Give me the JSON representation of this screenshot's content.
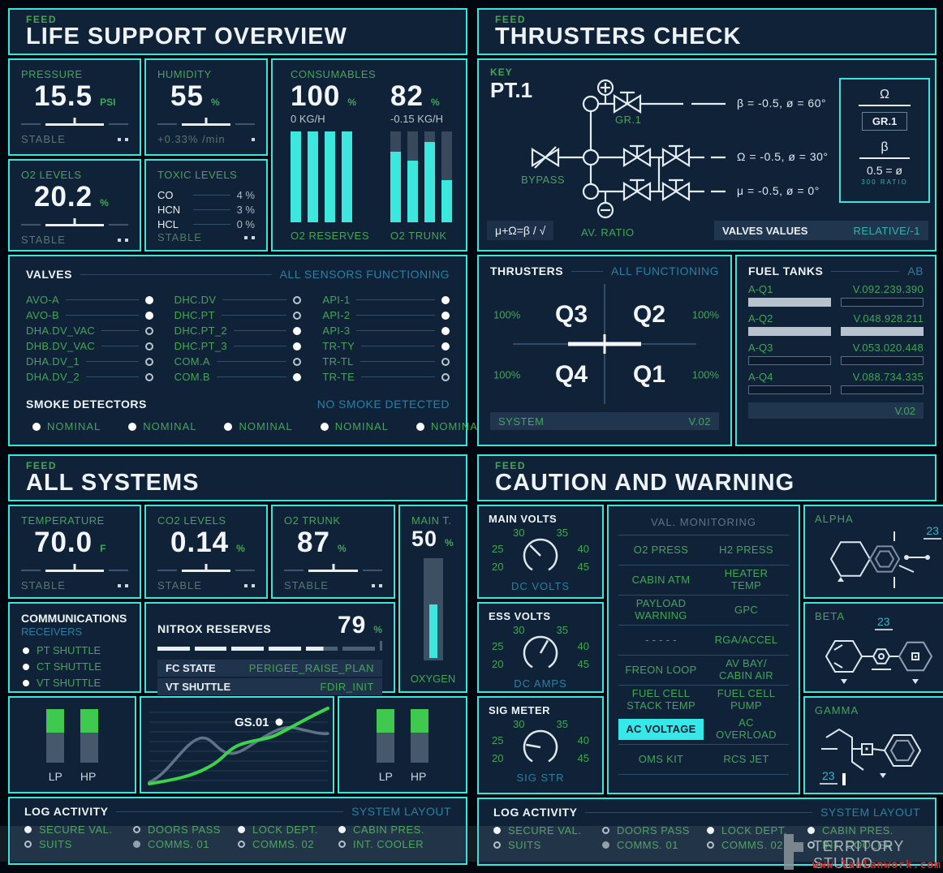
{
  "accent": {
    "cyan": "#38e6dc",
    "green": "#46a557",
    "teal": "#2f7fa0",
    "bar_green": "#3fca4f",
    "highlight": "#35e9e9"
  },
  "life_support": {
    "feed": "FEED",
    "title": "LIFE SUPPORT OVERVIEW",
    "pressure": {
      "label": "PRESSURE",
      "value": "15.5",
      "unit": "PSI",
      "status": "STABLE"
    },
    "humidity": {
      "label": "HUMIDITY",
      "value": "55",
      "unit": "%",
      "status": "+0.33% /min"
    },
    "o2_levels": {
      "label": "O2 LEVELS",
      "value": "20.2",
      "unit": "%",
      "status": "STABLE"
    },
    "toxic": {
      "label": "TOXIC LEVELS",
      "status": "STABLE",
      "rows": [
        {
          "name": "CO",
          "value": "4 %"
        },
        {
          "name": "HCN",
          "value": "3 %"
        },
        {
          "name": "HCL",
          "value": "0 %"
        }
      ]
    },
    "consumables": {
      "label": "CONSUMABLES",
      "reserves": {
        "value": "100",
        "unit": "%",
        "rate": "0 KG/H",
        "caption": "O2 RESERVES",
        "bars": [
          100,
          100,
          100,
          100
        ]
      },
      "trunk": {
        "value": "82",
        "unit": "%",
        "rate": "-0.15 KG/H",
        "caption": "O2 TRUNK",
        "bars": [
          78,
          68,
          88,
          46
        ]
      }
    },
    "valves": {
      "label": "VALVES",
      "status": "ALL SENSORS FUNCTIONING",
      "col1": [
        {
          "name": "AVO-A",
          "state": "on"
        },
        {
          "name": "AVO-B",
          "state": "on"
        },
        {
          "name": "DHA.DV_VAC",
          "state": "off"
        },
        {
          "name": "DHB.DV_VAC",
          "state": "off"
        },
        {
          "name": "DHA.DV_1",
          "state": "off"
        },
        {
          "name": "DHA.DV_2",
          "state": "off"
        }
      ],
      "col2": [
        {
          "name": "DHC.DV",
          "state": "off"
        },
        {
          "name": "DHC.PT",
          "state": "off"
        },
        {
          "name": "DHC.PT_2",
          "state": "on"
        },
        {
          "name": "DHC.PT_3",
          "state": "on"
        },
        {
          "name": "COM.A",
          "state": "off"
        },
        {
          "name": "COM.B",
          "state": "on"
        }
      ],
      "col3": [
        {
          "name": "API-1",
          "state": "on"
        },
        {
          "name": "API-2",
          "state": "on"
        },
        {
          "name": "API-3",
          "state": "on"
        },
        {
          "name": "TR-TY",
          "state": "on"
        },
        {
          "name": "TR-TL",
          "state": "off"
        },
        {
          "name": "TR-TE",
          "state": "off"
        }
      ]
    },
    "smoke": {
      "label": "SMOKE DETECTORS",
      "status": "NO SMOKE DETECTED",
      "items": [
        {
          "name": "NOMINAL"
        },
        {
          "name": "NOMINAL"
        },
        {
          "name": "NOMINAL"
        },
        {
          "name": "NOMINAL"
        },
        {
          "name": "NOMINAL"
        }
      ]
    }
  },
  "all_systems": {
    "feed": "FEED",
    "title": "ALL SYSTEMS",
    "temperature": {
      "label": "TEMPERATURE",
      "value": "70.0",
      "unit": "F",
      "status": "STABLE"
    },
    "co2": {
      "label": "CO2 LEVELS",
      "value": "0.14",
      "unit": "%",
      "status": "STABLE"
    },
    "o2_trunk": {
      "label": "O2 TRUNK",
      "value": "87",
      "unit": "%",
      "status": "STABLE"
    },
    "main_t": {
      "label": "MAIN T.",
      "value": "50",
      "unit": "%",
      "caption": "OXYGEN",
      "level": 52
    },
    "comms": {
      "label": "COMMUNICATIONS",
      "sub": "RECEIVERS",
      "items": [
        {
          "name": "PT SHUTTLE"
        },
        {
          "name": "CT SHUTTLE"
        },
        {
          "name": "VT SHUTTLE"
        }
      ]
    },
    "nitrox": {
      "label": "NITROX RESERVES",
      "value": "79",
      "unit": "%",
      "segments": [
        "full",
        "full",
        "full",
        "full",
        "half",
        "empty"
      ],
      "rows": [
        {
          "name": "FC STATE",
          "value": "PERIGEE_RAISE_PLAN"
        },
        {
          "name": "VT SHUTTLE",
          "value": "FDIR_INIT"
        }
      ]
    },
    "graph": {
      "label": "GS.01"
    },
    "gauge_left": {
      "lp": "LP",
      "hp": "HP"
    },
    "gauge_right": {
      "lp": "LP",
      "hp": "HP"
    }
  },
  "thrusters_check": {
    "feed": "FEED",
    "title": "THRUSTERS CHECK",
    "key": {
      "label": "KEY",
      "name": "PT.1",
      "gr": "GR.1",
      "bypass": "BYPASS",
      "av_ratio": "AV. RATIO",
      "eq1": "β = -0.5, ø = 60°",
      "eq2": "Ω = -0.5, ø = 30°",
      "eq3": "μ = -0.5, ø = 0°",
      "formula": "μ+Ω=β / √",
      "bar_label": "VALVES VALUES",
      "bar_value": "RELATIVE/-1",
      "legend": {
        "top": "Ω",
        "box": "GR.1",
        "mid": "β",
        "eq": "0.5 = ø",
        "ratio": "300  RATIO"
      }
    },
    "thrusters": {
      "label": "THRUSTERS",
      "status": "ALL  FUNCTIONING",
      "q3": "Q3",
      "q2": "Q2",
      "q4": "Q4",
      "q1": "Q1",
      "p3": "100%",
      "p2": "100%",
      "p4": "100%",
      "p1": "100%",
      "footer_label": "SYSTEM",
      "footer_value": "V.02"
    },
    "fuel": {
      "label": "FUEL TANKS",
      "status": "AB",
      "footer_value": "V.02",
      "rows": [
        {
          "name": "A-Q1",
          "value": "V.092.239.390",
          "left": "filled",
          "right": "empty"
        },
        {
          "name": "A-Q2",
          "value": "V.048.928.211",
          "left": "filled",
          "right": "filled"
        },
        {
          "name": "A-Q3",
          "value": "V.053.020.448",
          "left": "empty",
          "right": "empty"
        },
        {
          "name": "A-Q4",
          "value": "V.088.734.335",
          "left": "empty",
          "right": "empty"
        }
      ]
    }
  },
  "caution": {
    "feed": "FEED",
    "title": "CAUTION AND WARNING",
    "gauges": [
      {
        "label": "MAIN VOLTS",
        "caption": "DC VOLTS",
        "ticks": [
          "20",
          "25",
          "30",
          "35",
          "40",
          "45"
        ],
        "angle": -45
      },
      {
        "label": "ESS VOLTS",
        "caption": "DC AMPS",
        "ticks": [
          "20",
          "25",
          "30",
          "35",
          "40",
          "45"
        ],
        "angle": 30
      },
      {
        "label": "SIG METER",
        "caption": "SIG STR",
        "ticks": [
          "20",
          "25",
          "30",
          "35",
          "40",
          "45"
        ],
        "angle": -80
      }
    ],
    "monitor": {
      "title": "VAL. MONITORING",
      "rows": [
        {
          "left": "O2 PRESS",
          "right": "H2 PRESS"
        },
        {
          "left": "CABIN ATM",
          "right": "HEATER TEMP"
        },
        {
          "left": "PAYLOAD WARNING",
          "right": "GPC"
        },
        {
          "left": "- - - - -",
          "right": "RGA/ACCEL"
        },
        {
          "left": "FREON LOOP",
          "right": "AV BAY/ CABIN AIR"
        },
        {
          "left": "FUEL CELL STACK TEMP",
          "right": "FUEL CELL PUMP"
        },
        {
          "left": "AC VOLTAGE",
          "right": "AC OVERLOAD"
        },
        {
          "left": "OMS KIT",
          "right": "RCS JET"
        }
      ]
    },
    "chems": [
      {
        "label": "ALPHA",
        "tag": "23"
      },
      {
        "label": "BETA",
        "tag": "23"
      },
      {
        "label": "GAMMA",
        "tag": "23"
      }
    ]
  },
  "log": {
    "label": "LOG ACTIVITY",
    "status": "SYSTEM LAYOUT",
    "items": [
      {
        "name": "SECURE VAL.",
        "state": "on"
      },
      {
        "name": "DOORS PASS",
        "state": "off"
      },
      {
        "name": "LOCK DEPT.",
        "state": "on"
      },
      {
        "name": "CABIN PRES.",
        "state": "on"
      },
      {
        "name": "SUITS",
        "state": "off"
      },
      {
        "name": "COMMS. 01",
        "state": "dim"
      },
      {
        "name": "COMMS. 02",
        "state": "off"
      },
      {
        "name": "INT. COOLER",
        "state": "off"
      }
    ]
  },
  "watermark": {
    "studio": "TERRITORY STUDIO",
    "url": "www.lanlanwork.com"
  }
}
